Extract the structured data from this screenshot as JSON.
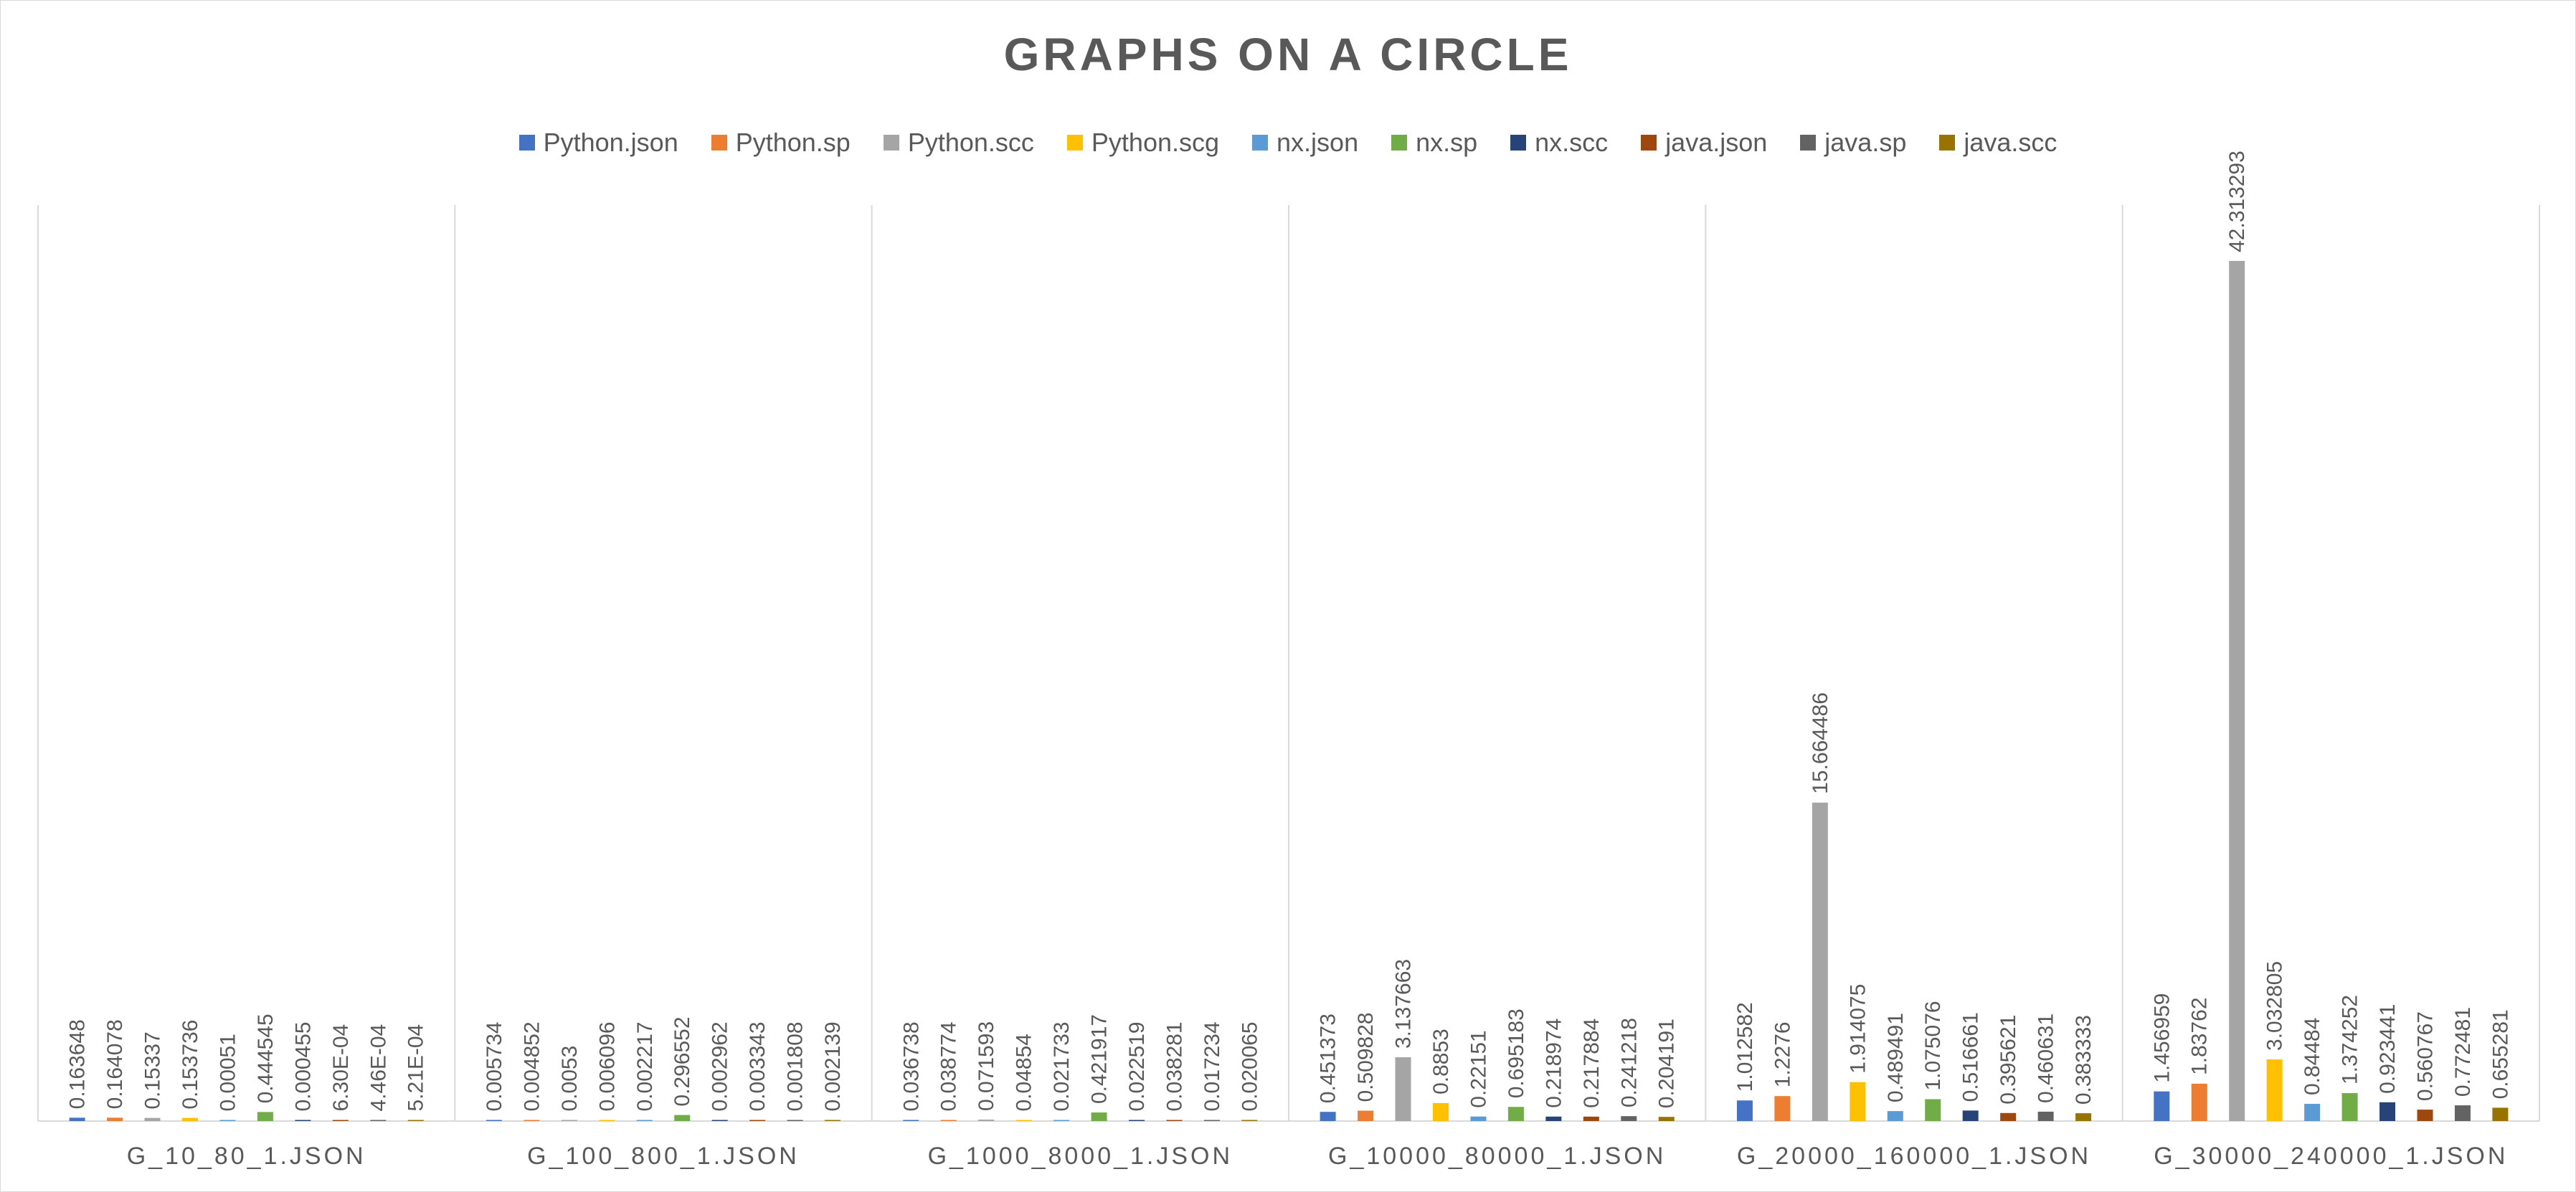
{
  "chart_data": {
    "type": "bar",
    "title": "GRAPHS ON A CIRCLE",
    "xlabel": "",
    "ylabel": "",
    "ylim": [
      0,
      45
    ],
    "grid": "vertical separators",
    "legend_position": "top",
    "categories": [
      "G_10_80_1.JSON",
      "G_100_800_1.JSON",
      "G_1000_8000_1.JSON",
      "G_10000_80000_1.JSON",
      "G_20000_160000_1.JSON",
      "G_30000_240000_1.JSON"
    ],
    "series": [
      {
        "name": "Python.json",
        "color": "#4472C4",
        "values": [
          0.163648,
          0.005734,
          0.036738,
          0.451373,
          1.012582,
          1.456959
        ],
        "labels": [
          "0.163648",
          "0.005734",
          "0.036738",
          "0.451373",
          "1.012582",
          "1.456959"
        ]
      },
      {
        "name": "Python.sp",
        "color": "#ED7D31",
        "values": [
          0.164078,
          0.004852,
          0.038774,
          0.509828,
          1.2276,
          1.83762
        ],
        "labels": [
          "0.164078",
          "0.004852",
          "0.038774",
          "0.509828",
          "1.2276",
          "1.83762"
        ]
      },
      {
        "name": "Python.scc",
        "color": "#A5A5A5",
        "values": [
          0.15337,
          0.0053,
          0.071593,
          3.137663,
          15.664486,
          42.313293
        ],
        "labels": [
          "0.15337",
          "0.0053",
          "0.071593",
          "3.137663",
          "15.664486",
          "42.313293"
        ]
      },
      {
        "name": "Python.scg",
        "color": "#FFC000",
        "values": [
          0.153736,
          0.006096,
          0.04854,
          0.8853,
          1.914075,
          3.032805
        ],
        "labels": [
          "0.153736",
          "0.006096",
          "0.04854",
          "0.8853",
          "1.914075",
          "3.032805"
        ]
      },
      {
        "name": "nx.json",
        "color": "#5B9BD5",
        "values": [
          0.00051,
          0.002217,
          0.021733,
          0.22151,
          0.489491,
          0.84484
        ],
        "labels": [
          "0.00051",
          "0.002217",
          "0.021733",
          "0.22151",
          "0.489491",
          "0.84484"
        ]
      },
      {
        "name": "nx.sp",
        "color": "#70AD47",
        "values": [
          0.444545,
          0.296552,
          0.421917,
          0.695183,
          1.075076,
          1.374252
        ],
        "labels": [
          "0.444545",
          "0.296552",
          "0.421917",
          "0.695183",
          "1.075076",
          "1.374252"
        ]
      },
      {
        "name": "nx.scc",
        "color": "#264478",
        "values": [
          0.000455,
          0.002962,
          0.022519,
          0.218974,
          0.516661,
          0.923441
        ],
        "labels": [
          "0.000455",
          "0.002962",
          "0.022519",
          "0.218974",
          "0.516661",
          "0.923441"
        ]
      },
      {
        "name": "java.json",
        "color": "#9E480E",
        "values": [
          0.00063,
          0.003343,
          0.038281,
          0.217884,
          0.395621,
          0.560767
        ],
        "labels": [
          "6.30E-04",
          "0.003343",
          "0.038281",
          "0.217884",
          "0.395621",
          "0.560767"
        ]
      },
      {
        "name": "java.sp",
        "color": "#636363",
        "values": [
          0.000446,
          0.001808,
          0.017234,
          0.241218,
          0.460631,
          0.772481
        ],
        "labels": [
          "4.46E-04",
          "0.001808",
          "0.017234",
          "0.241218",
          "0.460631",
          "0.772481"
        ]
      },
      {
        "name": "java.scc",
        "color": "#997300",
        "values": [
          0.000521,
          0.002139,
          0.020065,
          0.204191,
          0.383333,
          0.655281
        ],
        "labels": [
          "5.21E-04",
          "0.002139",
          "0.020065",
          "0.204191",
          "0.383333",
          "0.655281"
        ]
      }
    ]
  }
}
